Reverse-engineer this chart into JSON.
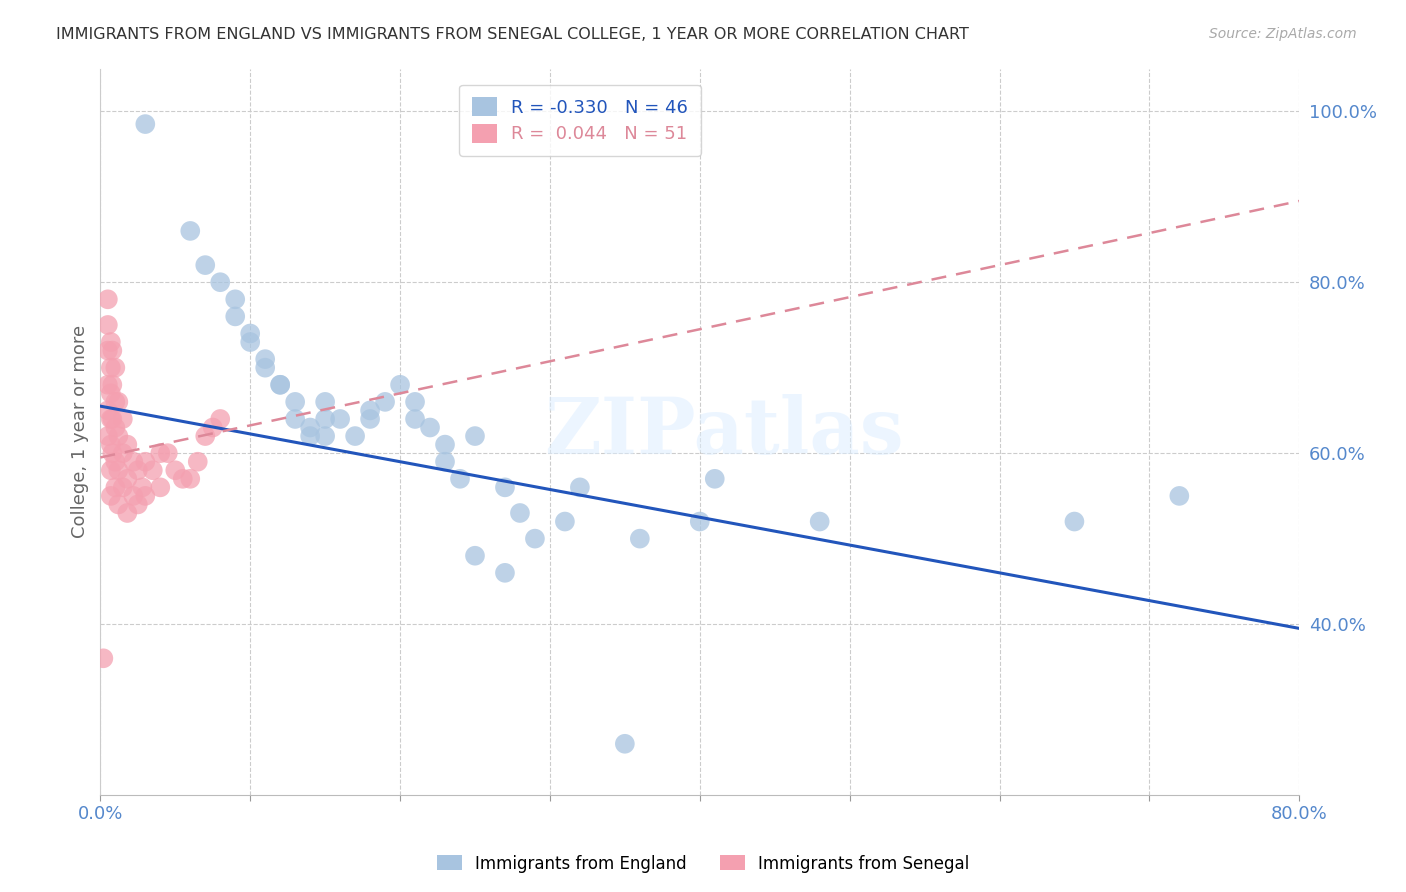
{
  "title": "IMMIGRANTS FROM ENGLAND VS IMMIGRANTS FROM SENEGAL COLLEGE, 1 YEAR OR MORE CORRELATION CHART",
  "source": "Source: ZipAtlas.com",
  "ylabel": "College, 1 year or more",
  "xlabel": "",
  "xlim": [
    0.0,
    0.8
  ],
  "ylim": [
    0.2,
    1.05
  ],
  "yticks": [
    0.4,
    0.6,
    0.8,
    1.0
  ],
  "ytick_labels": [
    "40.0%",
    "60.0%",
    "80.0%",
    "100.0%"
  ],
  "xticks": [
    0.0,
    0.1,
    0.2,
    0.3,
    0.4,
    0.5,
    0.6,
    0.7,
    0.8
  ],
  "xtick_labels": [
    "0.0%",
    "",
    "",
    "",
    "",
    "",
    "",
    "",
    "80.0%"
  ],
  "england_R": -0.33,
  "england_N": 46,
  "senegal_R": 0.044,
  "senegal_N": 51,
  "england_color": "#a8c4e0",
  "senegal_color": "#f4a0b0",
  "england_line_color": "#2255bb",
  "senegal_line_color": "#dd8899",
  "tick_label_color": "#5588cc",
  "watermark_text": "ZIPatlas",
  "eng_line_x0": 0.0,
  "eng_line_y0": 0.655,
  "eng_line_x1": 0.8,
  "eng_line_y1": 0.395,
  "sen_line_x0": 0.0,
  "sen_line_y0": 0.595,
  "sen_line_x1": 0.8,
  "sen_line_y1": 0.895,
  "england_scatter_x": [
    0.03,
    0.06,
    0.07,
    0.08,
    0.09,
    0.09,
    0.1,
    0.1,
    0.11,
    0.11,
    0.12,
    0.12,
    0.13,
    0.13,
    0.14,
    0.14,
    0.15,
    0.15,
    0.15,
    0.16,
    0.17,
    0.18,
    0.18,
    0.19,
    0.2,
    0.21,
    0.21,
    0.22,
    0.23,
    0.23,
    0.24,
    0.25,
    0.27,
    0.28,
    0.29,
    0.31,
    0.32,
    0.36,
    0.4,
    0.41,
    0.65,
    0.72,
    0.25,
    0.27,
    0.35,
    0.48
  ],
  "england_scatter_y": [
    0.985,
    0.86,
    0.82,
    0.8,
    0.78,
    0.76,
    0.74,
    0.73,
    0.71,
    0.7,
    0.68,
    0.68,
    0.66,
    0.64,
    0.63,
    0.62,
    0.62,
    0.64,
    0.66,
    0.64,
    0.62,
    0.64,
    0.65,
    0.66,
    0.68,
    0.66,
    0.64,
    0.63,
    0.61,
    0.59,
    0.57,
    0.62,
    0.56,
    0.53,
    0.5,
    0.52,
    0.56,
    0.5,
    0.52,
    0.57,
    0.52,
    0.55,
    0.48,
    0.46,
    0.26,
    0.52
  ],
  "senegal_scatter_x": [
    0.005,
    0.005,
    0.005,
    0.005,
    0.005,
    0.005,
    0.007,
    0.007,
    0.007,
    0.007,
    0.007,
    0.007,
    0.007,
    0.008,
    0.008,
    0.008,
    0.008,
    0.01,
    0.01,
    0.01,
    0.01,
    0.01,
    0.012,
    0.012,
    0.012,
    0.012,
    0.015,
    0.015,
    0.015,
    0.018,
    0.018,
    0.018,
    0.022,
    0.022,
    0.025,
    0.025,
    0.028,
    0.03,
    0.03,
    0.035,
    0.04,
    0.04,
    0.045,
    0.05,
    0.055,
    0.06,
    0.065,
    0.07,
    0.075,
    0.08,
    0.002
  ],
  "senegal_scatter_y": [
    0.78,
    0.75,
    0.72,
    0.68,
    0.65,
    0.62,
    0.73,
    0.7,
    0.67,
    0.64,
    0.61,
    0.58,
    0.55,
    0.72,
    0.68,
    0.64,
    0.6,
    0.7,
    0.66,
    0.63,
    0.59,
    0.56,
    0.66,
    0.62,
    0.58,
    0.54,
    0.64,
    0.6,
    0.56,
    0.61,
    0.57,
    0.53,
    0.59,
    0.55,
    0.58,
    0.54,
    0.56,
    0.59,
    0.55,
    0.58,
    0.6,
    0.56,
    0.6,
    0.58,
    0.57,
    0.57,
    0.59,
    0.62,
    0.63,
    0.64,
    0.36
  ]
}
